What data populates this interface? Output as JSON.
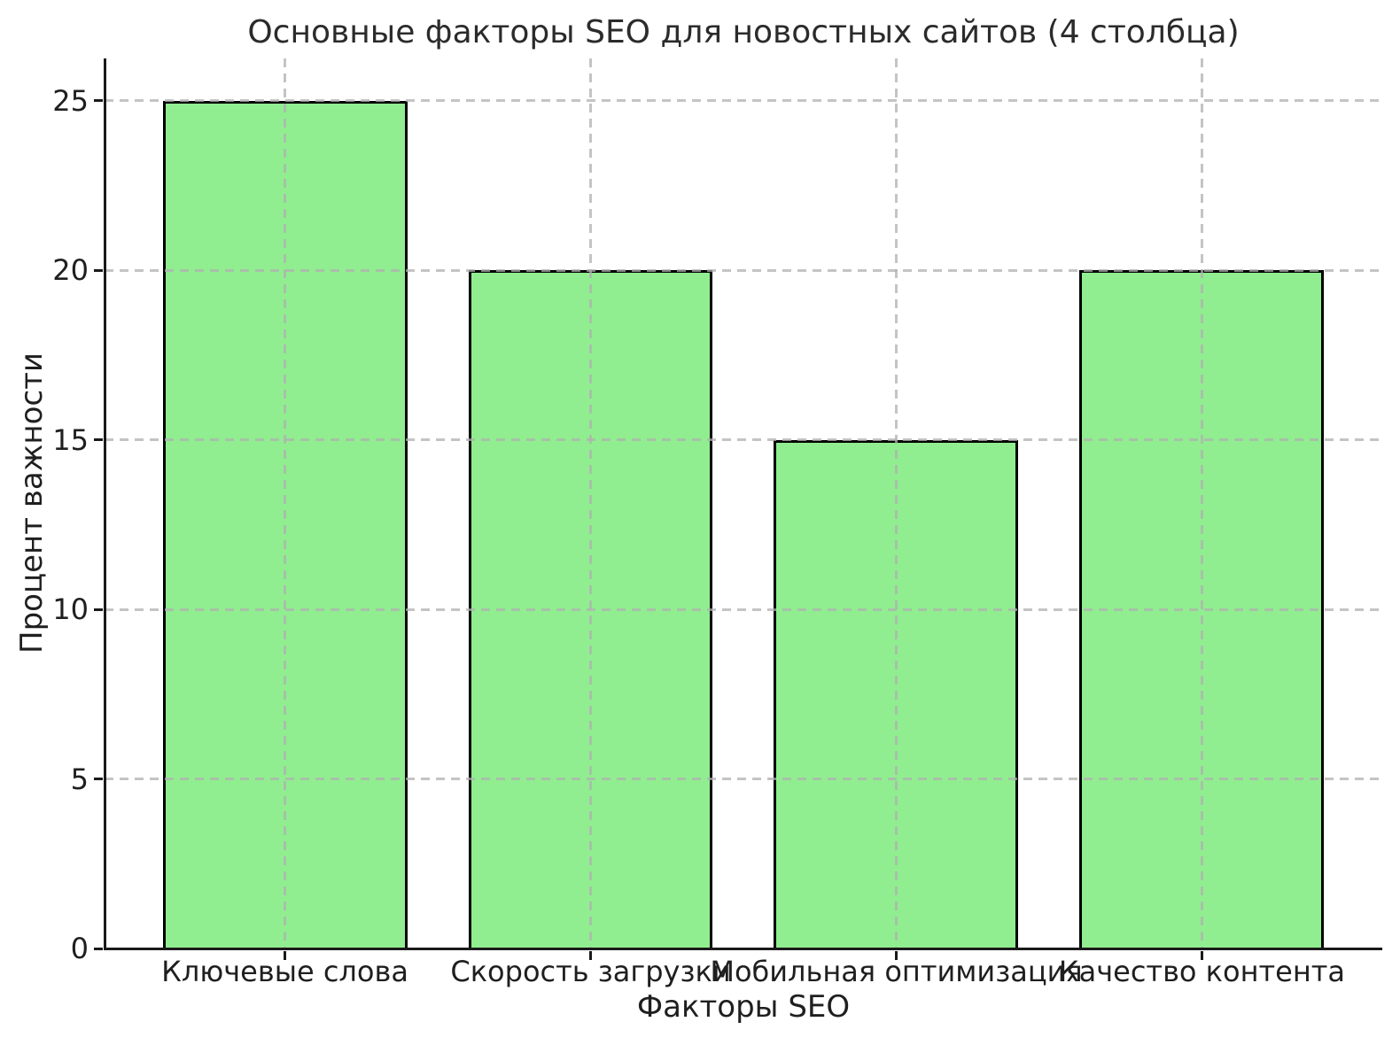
{
  "figure": {
    "background_color": "#ffffff",
    "text_color": "#1f1f1f"
  },
  "chart_data": {
    "type": "bar",
    "title": "Основные факторы SEO для новостных сайтов (4 столбца)",
    "xlabel": "Факторы SEO",
    "ylabel": "Процент важности",
    "categories": [
      "Ключевые слова",
      "Скорость загрузки",
      "Мобильная оптимизация",
      "Качество контента"
    ],
    "values": [
      25,
      20,
      15,
      20
    ],
    "yticks": [
      0,
      5,
      10,
      15,
      20,
      25
    ],
    "ylim": [
      0,
      26.25
    ],
    "xlim": [
      -0.59,
      3.59
    ],
    "bar_width_units": 0.8,
    "bar_color": "#90EE90",
    "bar_edge_color": "#000000",
    "grid": true,
    "grid_style": "dashed",
    "grid_color": "#b0b0b0",
    "legend_position": "none"
  }
}
